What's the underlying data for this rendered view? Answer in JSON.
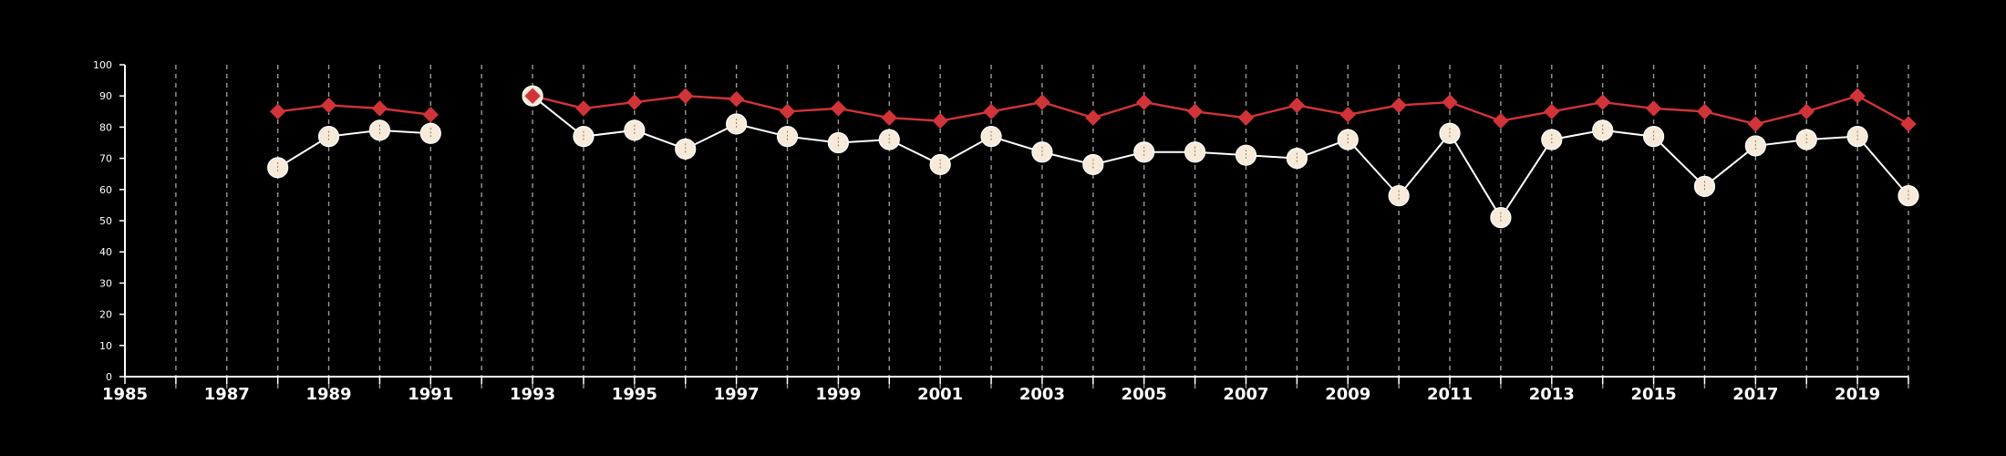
{
  "chart_data": {
    "type": "line",
    "title": "",
    "xlabel": "",
    "ylabel": "",
    "xlim": [
      1985,
      2020
    ],
    "ylim": [
      0,
      100
    ],
    "x_tick_labels": [
      "1985",
      "1987",
      "1989",
      "1991",
      "1993",
      "1995",
      "1997",
      "1999",
      "2001",
      "2003",
      "2005",
      "2007",
      "2009",
      "2011",
      "2013",
      "2015",
      "2017",
      "2019"
    ],
    "y_tick_labels": [
      "0",
      "10",
      "20",
      "30",
      "40",
      "50",
      "60",
      "70",
      "80",
      "90",
      "100"
    ],
    "grid": {
      "vertical": true,
      "horizontal": false,
      "style": "dashed"
    },
    "colors": {
      "background": "#000000",
      "series_red": "#d13438",
      "series_cream": "#f7ead9",
      "cream_line": "#ffffff",
      "grid": "#9a9a9a"
    },
    "series": [
      {
        "marker": "diamond",
        "color": "#d13438",
        "points": [
          {
            "x": 1988,
            "y": 85
          },
          {
            "x": 1989,
            "y": 87
          },
          {
            "x": 1990,
            "y": 86
          },
          {
            "x": 1991,
            "y": 84
          },
          {
            "x": 1993,
            "y": 90
          },
          {
            "x": 1994,
            "y": 86
          },
          {
            "x": 1995,
            "y": 88
          },
          {
            "x": 1996,
            "y": 90
          },
          {
            "x": 1997,
            "y": 89
          },
          {
            "x": 1998,
            "y": 85
          },
          {
            "x": 1999,
            "y": 86
          },
          {
            "x": 2000,
            "y": 83
          },
          {
            "x": 2001,
            "y": 82
          },
          {
            "x": 2002,
            "y": 85
          },
          {
            "x": 2003,
            "y": 88
          },
          {
            "x": 2004,
            "y": 83
          },
          {
            "x": 2005,
            "y": 88
          },
          {
            "x": 2006,
            "y": 85
          },
          {
            "x": 2007,
            "y": 83
          },
          {
            "x": 2008,
            "y": 87
          },
          {
            "x": 2009,
            "y": 84
          },
          {
            "x": 2010,
            "y": 87
          },
          {
            "x": 2011,
            "y": 88
          },
          {
            "x": 2012,
            "y": 82
          },
          {
            "x": 2013,
            "y": 85
          },
          {
            "x": 2014,
            "y": 88
          },
          {
            "x": 2015,
            "y": 86
          },
          {
            "x": 2016,
            "y": 85
          },
          {
            "x": 2017,
            "y": 81
          },
          {
            "x": 2018,
            "y": 85
          },
          {
            "x": 2019,
            "y": 90
          },
          {
            "x": 2020,
            "y": 81
          }
        ]
      },
      {
        "marker": "circle",
        "color": "#f7ead9",
        "points": [
          {
            "x": 1988,
            "y": 67
          },
          {
            "x": 1989,
            "y": 77
          },
          {
            "x": 1990,
            "y": 79
          },
          {
            "x": 1991,
            "y": 78
          },
          {
            "x": 1993,
            "y": 90
          },
          {
            "x": 1994,
            "y": 77
          },
          {
            "x": 1995,
            "y": 79
          },
          {
            "x": 1996,
            "y": 73
          },
          {
            "x": 1997,
            "y": 81
          },
          {
            "x": 1998,
            "y": 77
          },
          {
            "x": 1999,
            "y": 75
          },
          {
            "x": 2000,
            "y": 76
          },
          {
            "x": 2001,
            "y": 68
          },
          {
            "x": 2002,
            "y": 77
          },
          {
            "x": 2003,
            "y": 72
          },
          {
            "x": 2004,
            "y": 68
          },
          {
            "x": 2005,
            "y": 72
          },
          {
            "x": 2006,
            "y": 72
          },
          {
            "x": 2007,
            "y": 71
          },
          {
            "x": 2008,
            "y": 70
          },
          {
            "x": 2009,
            "y": 76
          },
          {
            "x": 2010,
            "y": 58
          },
          {
            "x": 2011,
            "y": 78
          },
          {
            "x": 2012,
            "y": 51
          },
          {
            "x": 2013,
            "y": 76
          },
          {
            "x": 2014,
            "y": 79
          },
          {
            "x": 2015,
            "y": 77
          },
          {
            "x": 2016,
            "y": 61
          },
          {
            "x": 2017,
            "y": 74
          },
          {
            "x": 2018,
            "y": 76
          },
          {
            "x": 2019,
            "y": 77
          },
          {
            "x": 2020,
            "y": 58
          }
        ]
      }
    ]
  }
}
